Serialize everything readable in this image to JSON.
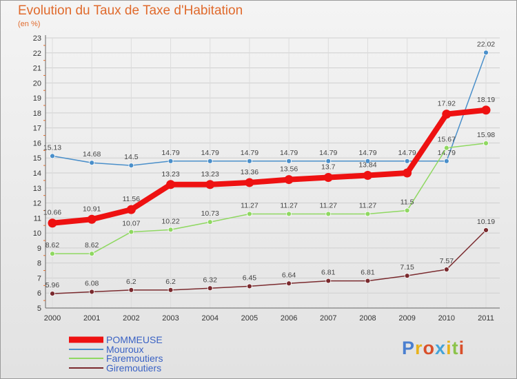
{
  "title": "Evolution du Taux de Taxe d'Habitation",
  "subtitle": "(en %)",
  "logo": {
    "text": "Proxiti",
    "letter_colors": [
      "#4a7fd0",
      "#e8b21c",
      "#d94f2a",
      "#45a3d8",
      "#e8b21c",
      "#8bc34a",
      "#d94f2a"
    ]
  },
  "chart_data": {
    "type": "line",
    "x": [
      "2000",
      "2001",
      "2002",
      "2003",
      "2004",
      "2005",
      "2006",
      "2007",
      "2008",
      "2009",
      "2010",
      "2011"
    ],
    "ylim": [
      5,
      23
    ],
    "yticks": [
      5,
      6,
      7,
      8,
      9,
      10,
      11,
      12,
      13,
      14,
      15,
      16,
      17,
      18,
      19,
      20,
      21,
      22,
      23
    ],
    "grid": true,
    "legend_position": "bottom-left",
    "series": [
      {
        "name": "Mouroux",
        "color": "#4a8fca",
        "values": [
          15.13,
          14.68,
          14.5,
          14.79,
          14.79,
          14.79,
          14.79,
          14.79,
          14.79,
          14.79,
          14.79,
          22.02
        ],
        "labels": [
          "15.13",
          "14.68",
          "14.5",
          "14.79",
          "14.79",
          "14.79",
          "14.79",
          "14.79",
          "14.79",
          "14.79",
          "14.79",
          "22.02"
        ]
      },
      {
        "name": "Faremoutiers",
        "color": "#8fd861",
        "values": [
          8.62,
          8.62,
          10.07,
          10.22,
          10.73,
          11.27,
          11.27,
          11.27,
          11.27,
          11.5,
          15.67,
          15.98
        ],
        "labels": [
          "8.62",
          "8.62",
          "10.07",
          "10.22",
          "10.73",
          "11.27",
          "11.27",
          "11.27",
          "11.27",
          "11.5",
          "15.67",
          "15.98"
        ]
      },
      {
        "name": "Giremoutiers",
        "color": "#7a2a2e",
        "values": [
          5.96,
          6.08,
          6.2,
          6.2,
          6.32,
          6.45,
          6.64,
          6.81,
          6.81,
          7.15,
          7.57,
          10.19
        ],
        "labels": [
          "5.96",
          "6.08",
          "6.2",
          "6.2",
          "6.32",
          "6.45",
          "6.64",
          "6.81",
          "6.81",
          "7.15",
          "7.57",
          "10.19"
        ]
      },
      {
        "name": "POMMEUSE",
        "color": "#ee1111",
        "values": [
          10.66,
          10.91,
          11.56,
          13.23,
          13.23,
          13.36,
          13.56,
          13.7,
          13.84,
          14.0,
          17.92,
          18.19
        ],
        "labels": [
          "10.66",
          "10.91",
          "11.56",
          "13.23",
          "13.23",
          "13.36",
          "13.56",
          "13.7",
          "13.84",
          "",
          "17.92",
          "18.19"
        ]
      }
    ],
    "legend": [
      {
        "name": "POMMEUSE",
        "color": "#ee1111"
      },
      {
        "name": "Mouroux",
        "color": "#4a8fca"
      },
      {
        "name": "Faremoutiers",
        "color": "#8fd861"
      },
      {
        "name": "Giremoutiers",
        "color": "#7a2a2e"
      }
    ]
  }
}
